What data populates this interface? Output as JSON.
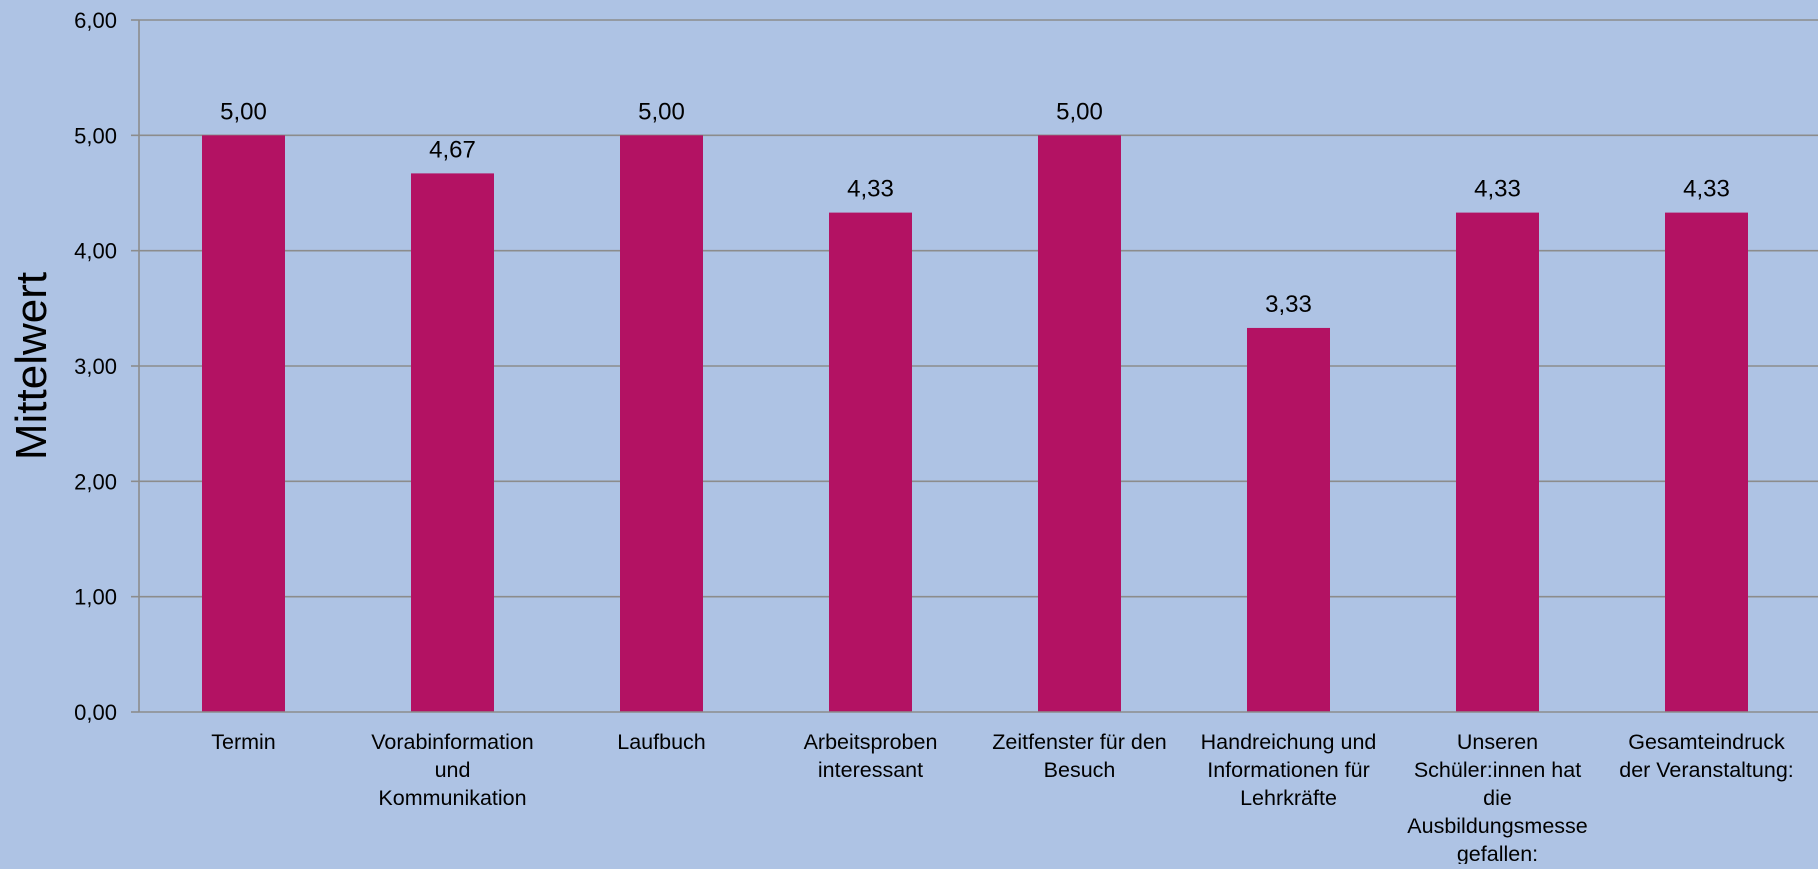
{
  "chart_data": {
    "type": "bar",
    "title": "",
    "xlabel": "",
    "ylabel": "Mittelwert",
    "ylim": [
      0,
      6
    ],
    "yticks": [
      "0,00",
      "1,00",
      "2,00",
      "3,00",
      "4,00",
      "5,00",
      "6,00"
    ],
    "grid": true,
    "legend": "none",
    "categories": [
      [
        "Termin"
      ],
      [
        "Vorabinformation",
        "und",
        "Kommunikation"
      ],
      [
        "Laufbuch"
      ],
      [
        "Arbeitsproben",
        "interessant"
      ],
      [
        "Zeitfenster für den",
        "Besuch"
      ],
      [
        "Handreichung und",
        "Informationen für",
        "Lehrkräfte"
      ],
      [
        "Unseren",
        "Schüler:innen hat",
        "die",
        "Ausbildungsmesse",
        "gefallen:"
      ],
      [
        "Gesamteindruck",
        "der Veranstaltung:"
      ]
    ],
    "values": [
      5.0,
      4.67,
      5.0,
      4.33,
      5.0,
      3.33,
      4.33,
      4.33
    ],
    "data_labels": [
      "5,00",
      "4,67",
      "5,00",
      "4,33",
      "5,00",
      "3,33",
      "4,33",
      "4,33"
    ],
    "colors": {
      "background": "#aec3e4",
      "bar": "#b31263",
      "grid": "#8c8c8c",
      "axis": "#8c8c8c",
      "text": "#000000"
    }
  }
}
